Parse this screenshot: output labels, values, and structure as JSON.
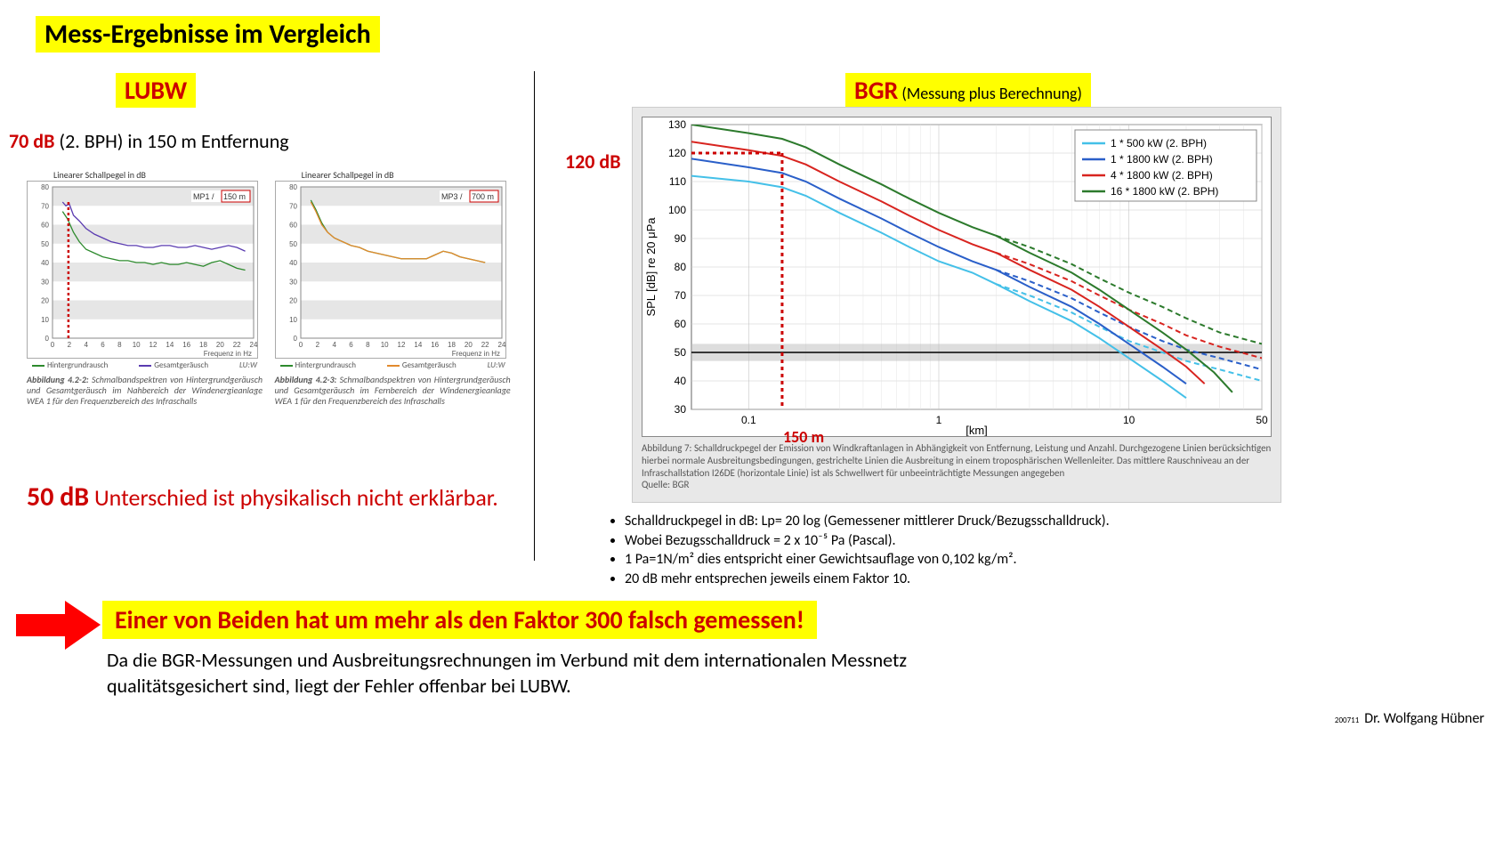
{
  "title": "Mess-Ergebnisse im Vergleich",
  "lubw": {
    "label": "LUBW",
    "db70_value": "70 dB",
    "db70_rest": " (2. BPH) in 150 m Entfernung",
    "chart1": {
      "yaxis_title": "Linearer Schallpegel in dB",
      "corner_left": "MP1 /",
      "corner_right": "150 m",
      "ymin": 0,
      "ymax": 80,
      "ystep": 10,
      "xmin": 0,
      "xmax": 24,
      "xstep": 2,
      "xlabel": "Frequenz in Hz",
      "legend": [
        {
          "label": "Hintergrundrausch",
          "color": "#2d8a2d"
        },
        {
          "label": "Gesamtgeräusch",
          "color": "#5a3bb0"
        }
      ],
      "series_hintergrund": {
        "color": "#2d8a2d",
        "points": [
          [
            1.2,
            67
          ],
          [
            1.8,
            63
          ],
          [
            2.5,
            56
          ],
          [
            3.2,
            51
          ],
          [
            4,
            47
          ],
          [
            5,
            45
          ],
          [
            6,
            43
          ],
          [
            7,
            42
          ],
          [
            8,
            41
          ],
          [
            9,
            41
          ],
          [
            10,
            40
          ],
          [
            11,
            40
          ],
          [
            12,
            39
          ],
          [
            13,
            40
          ],
          [
            14,
            39
          ],
          [
            15,
            39
          ],
          [
            16,
            40
          ],
          [
            17,
            39
          ],
          [
            18,
            38
          ],
          [
            19,
            40
          ],
          [
            20,
            41
          ],
          [
            21,
            39
          ],
          [
            22,
            37
          ],
          [
            23,
            36
          ]
        ]
      },
      "series_gesamt": {
        "color": "#5a3bb0",
        "points": [
          [
            1.2,
            72
          ],
          [
            1.6,
            70
          ],
          [
            2.0,
            71
          ],
          [
            2.5,
            65
          ],
          [
            3.2,
            62
          ],
          [
            4,
            58
          ],
          [
            5,
            55
          ],
          [
            6,
            53
          ],
          [
            7,
            51
          ],
          [
            8,
            50
          ],
          [
            9,
            49
          ],
          [
            10,
            49
          ],
          [
            11,
            48
          ],
          [
            12,
            48
          ],
          [
            13,
            49
          ],
          [
            14,
            49
          ],
          [
            15,
            48
          ],
          [
            16,
            48
          ],
          [
            17,
            49
          ],
          [
            18,
            48
          ],
          [
            19,
            47
          ],
          [
            20,
            48
          ],
          [
            21,
            49
          ],
          [
            22,
            48
          ],
          [
            23,
            46
          ]
        ]
      },
      "vline_x": 1.9,
      "caption_title": "Abbildung 4.2-2:",
      "caption": " Schmalbandspektren von Hintergrundge­räusch und Gesamtgeräusch im Nahbereich der Windener­gie­anlage WEA 1 für den Frequenzbereich des Infraschalls",
      "brand": "LU:W"
    },
    "chart2": {
      "yaxis_title": "Linearer Schallpegel in dB",
      "corner_left": "MP3 /",
      "corner_right": "700 m",
      "ymin": 0,
      "ymax": 80,
      "ystep": 10,
      "xmin": 0,
      "xmax": 24,
      "xstep": 2,
      "xlabel": "Frequenz in Hz",
      "legend": [
        {
          "label": "Hintergrundrausch",
          "color": "#2d8a2d"
        },
        {
          "label": "Gesamtgeräusch",
          "color": "#e28a2d"
        }
      ],
      "series_hintergrund": {
        "color": "#2d8a2d",
        "points": [
          [
            1.2,
            73
          ],
          [
            1.8,
            68
          ],
          [
            2.5,
            61
          ],
          [
            3.2,
            56
          ],
          [
            4,
            53
          ],
          [
            5,
            51
          ],
          [
            6,
            49
          ],
          [
            7,
            48
          ],
          [
            8,
            46
          ],
          [
            9,
            45
          ],
          [
            10,
            44
          ],
          [
            11,
            43
          ],
          [
            12,
            42
          ],
          [
            13,
            42
          ],
          [
            14,
            42
          ],
          [
            15,
            42
          ],
          [
            16,
            44
          ],
          [
            17,
            46
          ],
          [
            18,
            45
          ],
          [
            19,
            43
          ],
          [
            20,
            42
          ],
          [
            21,
            41
          ],
          [
            22,
            40
          ]
        ]
      },
      "series_gesamt": {
        "color": "#e28a2d",
        "points": [
          [
            1.2,
            72
          ],
          [
            1.8,
            67
          ],
          [
            2.5,
            60
          ],
          [
            3.2,
            56
          ],
          [
            4,
            53
          ],
          [
            5,
            51
          ],
          [
            6,
            49
          ],
          [
            7,
            48
          ],
          [
            8,
            46
          ],
          [
            9,
            45
          ],
          [
            10,
            44
          ],
          [
            11,
            43
          ],
          [
            12,
            42
          ],
          [
            13,
            42
          ],
          [
            14,
            42
          ],
          [
            15,
            42
          ],
          [
            16,
            44
          ],
          [
            17,
            46
          ],
          [
            18,
            45
          ],
          [
            19,
            43
          ],
          [
            20,
            42
          ],
          [
            21,
            41
          ],
          [
            22,
            40
          ]
        ]
      },
      "caption_title": "Abbildung 4.2-3:",
      "caption": " Schmalbandspektren von Hintergrundge­räusch und Gesamtgeräusch im Fernbereich der Windener­gie­anlage WEA 1 für den Frequenzbereich des Infraschalls",
      "brand": "LU:W"
    },
    "db50_value": "50 dB",
    "db50_rest": " Unterschied ist physikalisch nicht erklärbar."
  },
  "bgr": {
    "label": "BGR",
    "label_sub": " (Messung plus Berechnung)",
    "db120": "120 dB",
    "m150": "150 m",
    "chart": {
      "ylabel": "SPL [dB] re 20 μPa",
      "xlabel": "[km]",
      "ymin": 30,
      "ymax": 130,
      "ystep": 10,
      "xticks": [
        0.1,
        1,
        10,
        50
      ],
      "xlog_min": 0.05,
      "xlog_max": 50,
      "threshold_y": 50,
      "threshold_band": [
        47,
        53
      ],
      "vline_x": 0.15,
      "vline_y": 120,
      "legend": [
        {
          "color": "#44c0e8",
          "label": "1 * 500 kW (2. BPH)"
        },
        {
          "color": "#2a5fc9",
          "label": "1 * 1800 kW (2. BPH)"
        },
        {
          "color": "#d8241f",
          "label": "4 * 1800 kW (2. BPH)"
        },
        {
          "color": "#2c7a2c",
          "label": "16 * 1800 kW (2. BPH)"
        }
      ],
      "series": [
        {
          "color": "#44c0e8",
          "dash": false,
          "pts": [
            [
              0.05,
              112
            ],
            [
              0.1,
              110
            ],
            [
              0.15,
              108
            ],
            [
              0.2,
              105
            ],
            [
              0.3,
              99
            ],
            [
              0.5,
              92
            ],
            [
              0.7,
              87
            ],
            [
              1,
              82
            ],
            [
              1.5,
              78
            ],
            [
              2,
              74
            ],
            [
              3,
              68
            ],
            [
              5,
              61
            ],
            [
              7,
              55
            ],
            [
              10,
              48
            ],
            [
              15,
              40
            ],
            [
              20,
              34
            ]
          ]
        },
        {
          "color": "#44c0e8",
          "dash": true,
          "pts": [
            [
              2,
              74
            ],
            [
              3,
              70
            ],
            [
              5,
              64
            ],
            [
              7,
              59
            ],
            [
              10,
              54
            ],
            [
              15,
              50
            ],
            [
              20,
              47
            ],
            [
              30,
              44
            ],
            [
              50,
              40
            ]
          ]
        },
        {
          "color": "#2a5fc9",
          "dash": false,
          "pts": [
            [
              0.05,
              118
            ],
            [
              0.1,
              115
            ],
            [
              0.15,
              113
            ],
            [
              0.2,
              110
            ],
            [
              0.3,
              104
            ],
            [
              0.5,
              97
            ],
            [
              0.7,
              92
            ],
            [
              1,
              87
            ],
            [
              1.5,
              82
            ],
            [
              2,
              79
            ],
            [
              3,
              73
            ],
            [
              5,
              66
            ],
            [
              7,
              60
            ],
            [
              10,
              53
            ],
            [
              15,
              45
            ],
            [
              20,
              39
            ]
          ]
        },
        {
          "color": "#2a5fc9",
          "dash": true,
          "pts": [
            [
              2,
              79
            ],
            [
              3,
              75
            ],
            [
              5,
              69
            ],
            [
              7,
              64
            ],
            [
              10,
              59
            ],
            [
              15,
              54
            ],
            [
              20,
              51
            ],
            [
              30,
              48
            ],
            [
              50,
              44
            ]
          ]
        },
        {
          "color": "#d8241f",
          "dash": false,
          "pts": [
            [
              0.05,
              124
            ],
            [
              0.1,
              121
            ],
            [
              0.15,
              119
            ],
            [
              0.2,
              116
            ],
            [
              0.3,
              110
            ],
            [
              0.5,
              103
            ],
            [
              0.7,
              98
            ],
            [
              1,
              93
            ],
            [
              1.5,
              88
            ],
            [
              2,
              85
            ],
            [
              3,
              79
            ],
            [
              5,
              72
            ],
            [
              7,
              66
            ],
            [
              10,
              59
            ],
            [
              15,
              51
            ],
            [
              20,
              45
            ],
            [
              25,
              39
            ]
          ]
        },
        {
          "color": "#d8241f",
          "dash": true,
          "pts": [
            [
              2,
              85
            ],
            [
              3,
              81
            ],
            [
              5,
              75
            ],
            [
              7,
              70
            ],
            [
              10,
              65
            ],
            [
              15,
              60
            ],
            [
              20,
              56
            ],
            [
              30,
              52
            ],
            [
              50,
              48
            ]
          ]
        },
        {
          "color": "#2c7a2c",
          "dash": false,
          "pts": [
            [
              0.05,
              130
            ],
            [
              0.1,
              127
            ],
            [
              0.15,
              125
            ],
            [
              0.2,
              122
            ],
            [
              0.3,
              116
            ],
            [
              0.5,
              109
            ],
            [
              0.7,
              104
            ],
            [
              1,
              99
            ],
            [
              1.5,
              94
            ],
            [
              2,
              91
            ],
            [
              3,
              85
            ],
            [
              5,
              78
            ],
            [
              7,
              72
            ],
            [
              10,
              65
            ],
            [
              15,
              57
            ],
            [
              20,
              51
            ],
            [
              28,
              43
            ],
            [
              35,
              36
            ]
          ]
        },
        {
          "color": "#2c7a2c",
          "dash": true,
          "pts": [
            [
              2,
              91
            ],
            [
              3,
              87
            ],
            [
              5,
              81
            ],
            [
              7,
              76
            ],
            [
              10,
              71
            ],
            [
              15,
              66
            ],
            [
              20,
              62
            ],
            [
              30,
              57
            ],
            [
              50,
              53
            ]
          ]
        }
      ],
      "caption": "Abbildung 7: Schalldruckpegel der Emission von Windkraftanlagen in Abhängigkeit von Entfernung, Leistung und Anzahl. Durchgezogene Linien berücksichtigen hierbei normale Ausbreitungsbedingungen, gestrichelte Linien die Ausbreitung in einem troposphärischen Wellenleiter. Das mittlere Rauschniveau an der Infraschallstation I26DE (horizontale Linie) ist als Schwellwert für unbeeinträchtigte Messungen angegeben",
      "source": "Quelle: BGR"
    }
  },
  "bullets": [
    "Schalldruckpegel in dB: Lp= 20 log (Gemessener mittlerer Druck/Bezugsschalldruck).",
    "Wobei Bezugsschalldruck = 2 x 10⁻⁵ Pa (Pascal).",
    "1 Pa=1N/m² dies entspricht einer Gewichtsauflage von 0,102 kg/m².",
    "20 dB mehr entsprechen jeweils einem Faktor 10."
  ],
  "conclusion": "Einer von Beiden hat um mehr als den Faktor 300 falsch gemessen!",
  "followup": "Da die BGR-Messungen und Ausbreitungsrechnungen im Verbund mit dem internationalen Messnetz qualitätsgesichert sind, liegt der Fehler offenbar bei LUBW.",
  "footer_num": "200711",
  "footer_author": "Dr. Wolfgang Hübner",
  "colors": {
    "highlight": "#ffff00",
    "arrow": "#ff0000"
  }
}
